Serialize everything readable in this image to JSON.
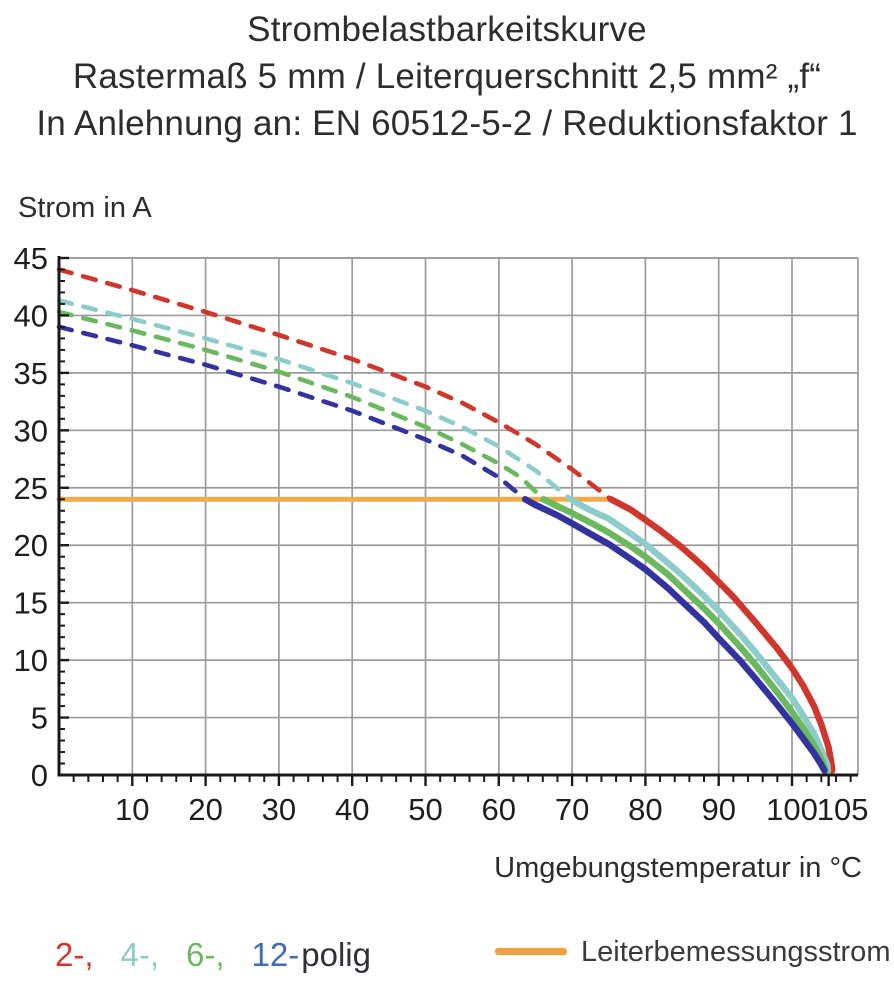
{
  "page": {
    "title_lines": [
      "Strombelastbarkeitskurve",
      "Rastermaß 5 mm / Leiterquerschnitt 2,5 mm² „f“",
      "In Anlehnung an: EN 60512-5-2 / Reduktionsfaktor 1"
    ]
  },
  "chart_data": {
    "type": "line",
    "title": "Strombelastbarkeitskurve",
    "subtitle": "Rastermaß 5 mm / Leiterquerschnitt 2,5 mm² „f“ — In Anlehnung an: EN 60512-5-2 / Reduktionsfaktor 1",
    "ylabel": "Strom in A",
    "xlabel": "Umgebungstemperatur in °C",
    "xlim": [
      0,
      109
    ],
    "ylim": [
      0,
      45
    ],
    "xticks": [
      10,
      20,
      30,
      40,
      50,
      60,
      70,
      80,
      90,
      100,
      105
    ],
    "yticks": [
      0,
      5,
      10,
      15,
      20,
      25,
      30,
      35,
      40,
      45
    ],
    "x_minor_step": 2,
    "y_minor_step": 1,
    "grid_x_step": 10,
    "grid_y_step": 5,
    "grid_color": "#9b9b9b",
    "axis_color": "#1a1a1a",
    "legend_position": "bottom",
    "rated_current": {
      "label": "Leiterbemessungsstrom",
      "value": 24,
      "x_start": 0,
      "x_end": 75.3,
      "color": "#f2ab4c"
    },
    "series": [
      {
        "name": "2-polig",
        "color": "#d0372c",
        "derating_dashed": [
          [
            0,
            44.0
          ],
          [
            10,
            42.2
          ],
          [
            20,
            40.3
          ],
          [
            30,
            38.3
          ],
          [
            40,
            36.2
          ],
          [
            50,
            33.8
          ],
          [
            55,
            32.4
          ],
          [
            60,
            30.7
          ],
          [
            65,
            28.8
          ],
          [
            70,
            26.6
          ],
          [
            75.3,
            24.0
          ]
        ],
        "solid": [
          [
            75.3,
            24.0
          ],
          [
            78,
            23.1
          ],
          [
            80,
            22.2
          ],
          [
            82,
            21.3
          ],
          [
            85,
            19.8
          ],
          [
            88,
            18.1
          ],
          [
            90,
            16.8
          ],
          [
            92,
            15.5
          ],
          [
            95,
            13.3
          ],
          [
            98,
            11.0
          ],
          [
            100,
            9.3
          ],
          [
            101.5,
            7.8
          ],
          [
            103,
            6.0
          ],
          [
            104,
            4.4
          ],
          [
            105,
            2.4
          ],
          [
            105.4,
            0.9
          ],
          [
            105.5,
            0.4
          ]
        ]
      },
      {
        "name": "4-polig",
        "color": "#8ecccc",
        "derating_dashed": [
          [
            0,
            41.3
          ],
          [
            10,
            39.7
          ],
          [
            20,
            38.0
          ],
          [
            30,
            36.2
          ],
          [
            40,
            34.1
          ],
          [
            50,
            31.7
          ],
          [
            55,
            30.3
          ],
          [
            60,
            28.6
          ],
          [
            65,
            26.5
          ],
          [
            69.8,
            24.0
          ]
        ],
        "solid": [
          [
            69.8,
            24.0
          ],
          [
            72,
            23.2
          ],
          [
            75,
            22.3
          ],
          [
            78,
            21.0
          ],
          [
            80,
            20.1
          ],
          [
            83,
            18.5
          ],
          [
            85,
            17.4
          ],
          [
            88,
            15.6
          ],
          [
            90,
            14.3
          ],
          [
            93,
            12.2
          ],
          [
            95,
            10.7
          ],
          [
            98,
            8.3
          ],
          [
            100,
            6.7
          ],
          [
            101.5,
            5.2
          ],
          [
            103,
            3.6
          ],
          [
            104,
            2.2
          ],
          [
            104.8,
            0.9
          ],
          [
            104.9,
            0.4
          ]
        ]
      },
      {
        "name": "6-polig",
        "color": "#6cb85f",
        "derating_dashed": [
          [
            0,
            40.3
          ],
          [
            10,
            38.7
          ],
          [
            20,
            37.0
          ],
          [
            30,
            35.1
          ],
          [
            40,
            32.9
          ],
          [
            50,
            30.3
          ],
          [
            55,
            28.8
          ],
          [
            60,
            27.1
          ],
          [
            63,
            25.9
          ],
          [
            66.1,
            24.0
          ]
        ],
        "solid": [
          [
            66.1,
            24.0
          ],
          [
            68,
            23.4
          ],
          [
            70,
            22.8
          ],
          [
            73,
            21.8
          ],
          [
            75,
            21.1
          ],
          [
            78,
            19.9
          ],
          [
            80,
            19.0
          ],
          [
            83,
            17.5
          ],
          [
            85,
            16.3
          ],
          [
            88,
            14.5
          ],
          [
            90,
            13.2
          ],
          [
            93,
            11.1
          ],
          [
            95,
            9.6
          ],
          [
            98,
            7.2
          ],
          [
            100,
            5.5
          ],
          [
            101.5,
            4.1
          ],
          [
            103,
            2.6
          ],
          [
            104.2,
            1.1
          ],
          [
            104.6,
            0.4
          ]
        ]
      },
      {
        "name": "12-polig",
        "color": "#3333a0",
        "derating_dashed": [
          [
            0,
            39.0
          ],
          [
            10,
            37.4
          ],
          [
            20,
            35.7
          ],
          [
            30,
            33.8
          ],
          [
            40,
            31.7
          ],
          [
            50,
            29.2
          ],
          [
            55,
            27.8
          ],
          [
            60,
            25.9
          ],
          [
            63.6,
            24.0
          ]
        ],
        "solid": [
          [
            63.6,
            24.0
          ],
          [
            65,
            23.5
          ],
          [
            68,
            22.6
          ],
          [
            70,
            21.9
          ],
          [
            73,
            20.8
          ],
          [
            75,
            20.1
          ],
          [
            78,
            18.8
          ],
          [
            80,
            17.9
          ],
          [
            83,
            16.3
          ],
          [
            85,
            15.1
          ],
          [
            88,
            13.3
          ],
          [
            90,
            11.9
          ],
          [
            93,
            9.9
          ],
          [
            95,
            8.4
          ],
          [
            98,
            6.1
          ],
          [
            100,
            4.5
          ],
          [
            101.5,
            3.2
          ],
          [
            103,
            1.9
          ],
          [
            104,
            0.9
          ],
          [
            104.4,
            0.4
          ]
        ]
      }
    ]
  },
  "legend": {
    "pole_items": [
      {
        "label": "2-,",
        "color": "#d0372c"
      },
      {
        "label": "4-,",
        "color": "#8ecccc"
      },
      {
        "label": "6-,",
        "color": "#6cb85f"
      },
      {
        "label": "12-",
        "color": "#3f6cb5"
      }
    ],
    "suffix": "polig",
    "rated_label": "Leiterbemessungsstrom",
    "rated_color": "#efa13f"
  }
}
